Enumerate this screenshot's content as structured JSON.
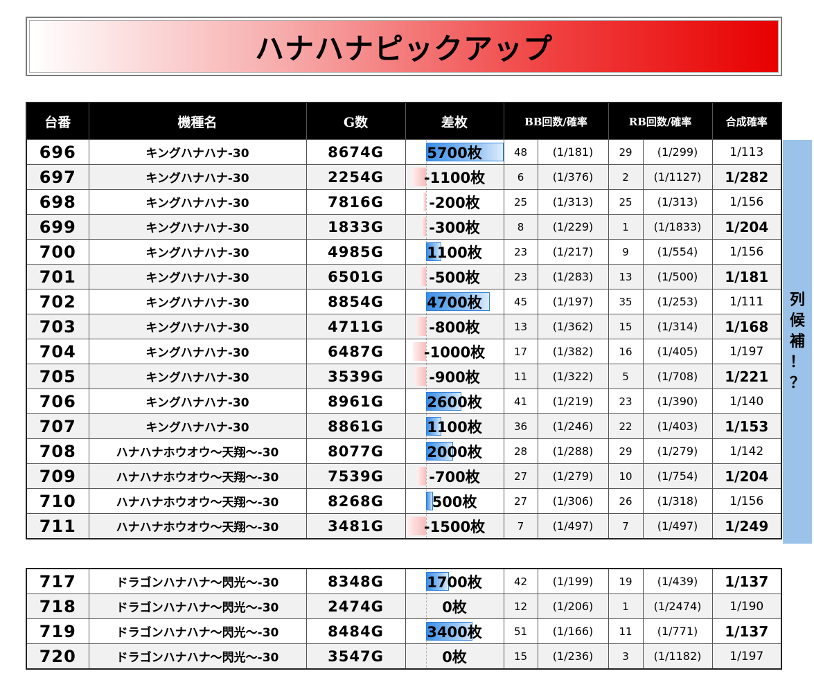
{
  "title": "ハナハナピックアップ",
  "side_label": [
    "列",
    "候",
    "補",
    "！",
    "？"
  ],
  "headers": {
    "no": "台番",
    "name": "機種名",
    "games": "G数",
    "diff": "差枚",
    "bb": "BB回数/確率",
    "rb": "RB回数/確率",
    "combined": "合成確率"
  },
  "rows": [
    {
      "no": "696",
      "name": "キングハナハナ-30",
      "games": "8674G",
      "diff_text": "5700枚",
      "diff": 5700,
      "bb": "48",
      "bb_prob": "(1/181)",
      "rb": "29",
      "rb_prob": "(1/299)",
      "comb": "1/113"
    },
    {
      "no": "697",
      "name": "キングハナハナ-30",
      "games": "2254G",
      "diff_text": "-1100枚",
      "diff": -1100,
      "bb": "6",
      "bb_prob": "(1/376)",
      "rb": "2",
      "rb_prob": "(1/1127)",
      "comb": "1/282"
    },
    {
      "no": "698",
      "name": "キングハナハナ-30",
      "games": "7816G",
      "diff_text": "-200枚",
      "diff": -200,
      "bb": "25",
      "bb_prob": "(1/313)",
      "rb": "25",
      "rb_prob": "(1/313)",
      "comb": "1/156"
    },
    {
      "no": "699",
      "name": "キングハナハナ-30",
      "games": "1833G",
      "diff_text": "-300枚",
      "diff": -300,
      "bb": "8",
      "bb_prob": "(1/229)",
      "rb": "1",
      "rb_prob": "(1/1833)",
      "comb": "1/204"
    },
    {
      "no": "700",
      "name": "キングハナハナ-30",
      "games": "4985G",
      "diff_text": "1100枚",
      "diff": 1100,
      "bb": "23",
      "bb_prob": "(1/217)",
      "rb": "9",
      "rb_prob": "(1/554)",
      "comb": "1/156"
    },
    {
      "no": "701",
      "name": "キングハナハナ-30",
      "games": "6501G",
      "diff_text": "-500枚",
      "diff": -500,
      "bb": "23",
      "bb_prob": "(1/283)",
      "rb": "13",
      "rb_prob": "(1/500)",
      "comb": "1/181"
    },
    {
      "no": "702",
      "name": "キングハナハナ-30",
      "games": "8854G",
      "diff_text": "4700枚",
      "diff": 4700,
      "bb": "45",
      "bb_prob": "(1/197)",
      "rb": "35",
      "rb_prob": "(1/253)",
      "comb": "1/111"
    },
    {
      "no": "703",
      "name": "キングハナハナ-30",
      "games": "4711G",
      "diff_text": "-800枚",
      "diff": -800,
      "bb": "13",
      "bb_prob": "(1/362)",
      "rb": "15",
      "rb_prob": "(1/314)",
      "comb": "1/168"
    },
    {
      "no": "704",
      "name": "キングハナハナ-30",
      "games": "6487G",
      "diff_text": "-1000枚",
      "diff": -1000,
      "bb": "17",
      "bb_prob": "(1/382)",
      "rb": "16",
      "rb_prob": "(1/405)",
      "comb": "1/197"
    },
    {
      "no": "705",
      "name": "キングハナハナ-30",
      "games": "3539G",
      "diff_text": "-900枚",
      "diff": -900,
      "bb": "11",
      "bb_prob": "(1/322)",
      "rb": "5",
      "rb_prob": "(1/708)",
      "comb": "1/221"
    },
    {
      "no": "706",
      "name": "キングハナハナ-30",
      "games": "8961G",
      "diff_text": "2600枚",
      "diff": 2600,
      "bb": "41",
      "bb_prob": "(1/219)",
      "rb": "23",
      "rb_prob": "(1/390)",
      "comb": "1/140"
    },
    {
      "no": "707",
      "name": "キングハナハナ-30",
      "games": "8861G",
      "diff_text": "1100枚",
      "diff": 1100,
      "bb": "36",
      "bb_prob": "(1/246)",
      "rb": "22",
      "rb_prob": "(1/403)",
      "comb": "1/153"
    },
    {
      "no": "708",
      "name": "ハナハナホウオウ～天翔～-30",
      "games": "8077G",
      "diff_text": "2000枚",
      "diff": 2000,
      "bb": "28",
      "bb_prob": "(1/288)",
      "rb": "29",
      "rb_prob": "(1/279)",
      "comb": "1/142"
    },
    {
      "no": "709",
      "name": "ハナハナホウオウ～天翔～-30",
      "games": "7539G",
      "diff_text": "-700枚",
      "diff": -700,
      "bb": "27",
      "bb_prob": "(1/279)",
      "rb": "10",
      "rb_prob": "(1/754)",
      "comb": "1/204"
    },
    {
      "no": "710",
      "name": "ハナハナホウオウ～天翔～-30",
      "games": "8268G",
      "diff_text": "500枚",
      "diff": 500,
      "bb": "27",
      "bb_prob": "(1/306)",
      "rb": "26",
      "rb_prob": "(1/318)",
      "comb": "1/156"
    },
    {
      "no": "711",
      "name": "ハナハナホウオウ～天翔～-30",
      "games": "3481G",
      "diff_text": "-1500枚",
      "diff": -1500,
      "bb": "7",
      "bb_prob": "(1/497)",
      "rb": "7",
      "rb_prob": "(1/497)",
      "comb": "1/249"
    }
  ],
  "rows2": [
    {
      "no": "717",
      "name": "ドラゴンハナハナ～閃光～-30",
      "games": "8348G",
      "diff_text": "1700枚",
      "diff": 1700,
      "bb": "42",
      "bb_prob": "(1/199)",
      "rb": "19",
      "rb_prob": "(1/439)",
      "comb": "1/137"
    },
    {
      "no": "718",
      "name": "ドラゴンハナハナ～閃光～-30",
      "games": "2474G",
      "diff_text": "0枚",
      "diff": 0,
      "bb": "12",
      "bb_prob": "(1/206)",
      "rb": "1",
      "rb_prob": "(1/2474)",
      "comb": "1/190"
    },
    {
      "no": "719",
      "name": "ドラゴンハナハナ～閃光～-30",
      "games": "8484G",
      "diff_text": "3400枚",
      "diff": 3400,
      "bb": "51",
      "bb_prob": "(1/166)",
      "rb": "11",
      "rb_prob": "(1/771)",
      "comb": "1/137"
    },
    {
      "no": "720",
      "name": "ドラゴンハナハナ～閃光～-30",
      "games": "3547G",
      "diff_text": "0枚",
      "diff": 0,
      "bb": "15",
      "bb_prob": "(1/236)",
      "rb": "3",
      "rb_prob": "(1/1182)",
      "comb": "1/197"
    }
  ],
  "colors": {
    "bar_positive": "#3a8ee6",
    "bar_negative": "#f7bcbc",
    "title_red": "#e80000",
    "side_blue": "#9bc2e8"
  }
}
